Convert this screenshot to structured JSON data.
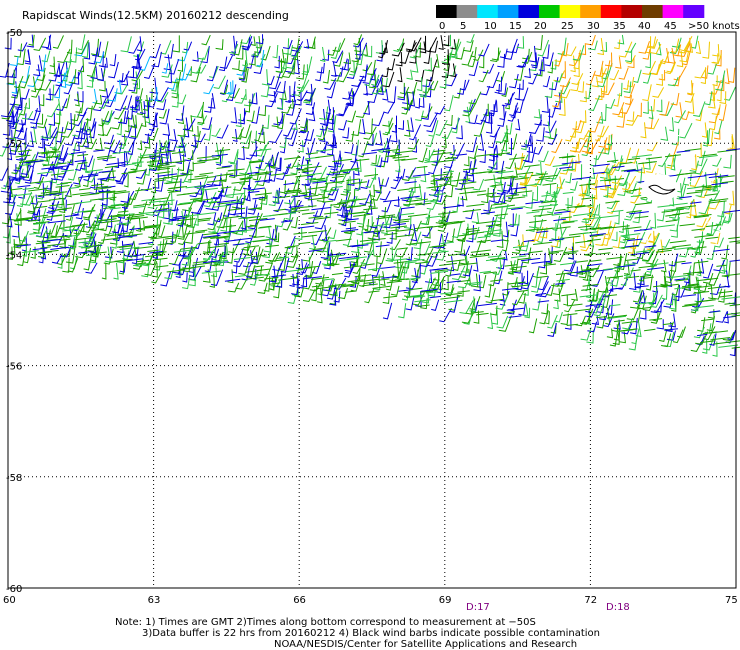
{
  "title": "Rapidscat Winds(12.5KM) 20160212 descending",
  "legend": {
    "labels": [
      "0",
      "5",
      "10",
      "15",
      "20",
      "25",
      "30",
      "35",
      "40",
      "45",
      ">50 knots"
    ],
    "colors": [
      "#000000",
      "#8c8c8c",
      "#00e6ff",
      "#00a0ff",
      "#0000dc",
      "#00c800",
      "#ffff00",
      "#ffa000",
      "#ff0000",
      "#b40000",
      "#6e3c00",
      "#ff00ff",
      "#6400ff"
    ]
  },
  "map": {
    "lon_labels": [
      "60",
      "63",
      "66",
      "69",
      "72",
      "75"
    ],
    "lat_labels": [
      "-50",
      "-52",
      "-54",
      "-56",
      "-58",
      "-60"
    ],
    "time_labels": [
      "D:17",
      "D:18"
    ],
    "barb_colors": {
      "low": "#0000dc",
      "mid": "#1aa000",
      "hi": "#2bc84a",
      "strong": "#f0c800",
      "stronger": "#ff9a00",
      "contam": "#000000",
      "light": "#00b4ff"
    }
  },
  "footer": {
    "line1": "Note: 1) Times are GMT 2)Times along bottom correspond to measurement at −50S",
    "line2": "3)Data buffer is 22 hrs from 20160212 4) Black wind barbs indicate possible contamination",
    "line3": "NOAA/NESDIS/Center for Satellite Applications and Research"
  }
}
